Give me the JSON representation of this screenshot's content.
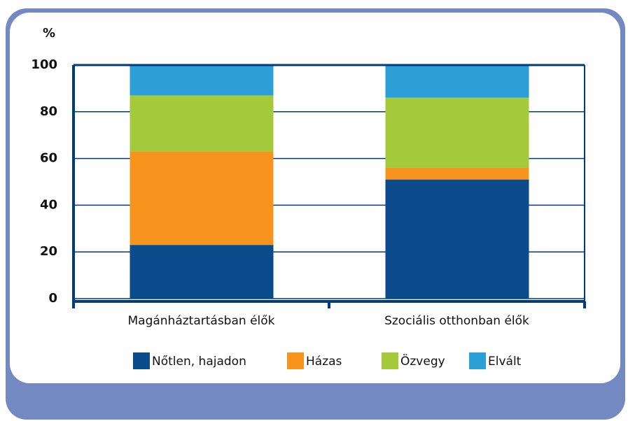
{
  "chart_data": {
    "type": "stacked_bar",
    "y_label": "%",
    "categories": [
      "Magánháztartásban élők",
      "Szociális otthonban élők"
    ],
    "series": [
      {
        "name": "Nőtlen, hajadon",
        "color": "#0b4a8b",
        "values": [
          23,
          51
        ]
      },
      {
        "name": "Házas",
        "color": "#f7941d",
        "values": [
          40,
          5
        ]
      },
      {
        "name": "Özvegy",
        "color": "#a4c93b",
        "values": [
          24,
          30
        ]
      },
      {
        "name": "Elvált",
        "color": "#2b9fd6",
        "values": [
          13,
          14
        ]
      }
    ],
    "ylim": [
      0,
      100
    ],
    "yticks": [
      0,
      20,
      40,
      60,
      80,
      100
    ],
    "grid": true
  }
}
